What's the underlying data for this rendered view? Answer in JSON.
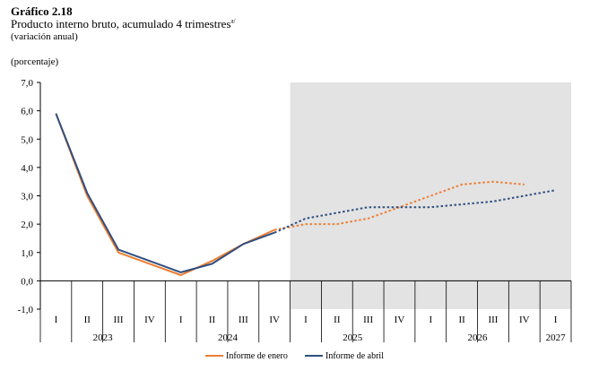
{
  "header": {
    "title": "Gráfico 2.18",
    "subtitle": "Producto interno bruto, acumulado 4 trimestres",
    "subtitle_mark": "a/",
    "note": "(variación anual)"
  },
  "chart_data": {
    "type": "line",
    "ylabel": "(porcentaje)",
    "ylim": [
      -1,
      7
    ],
    "yticks": [
      "7,0",
      "6,0",
      "5,0",
      "4,0",
      "3,0",
      "2,0",
      "1,0",
      "0,0",
      "-1,0"
    ],
    "categories": [
      "I",
      "II",
      "III",
      "IV",
      "I",
      "II",
      "III",
      "IV",
      "I",
      "II",
      "III",
      "IV",
      "I",
      "II",
      "III",
      "IV",
      "I"
    ],
    "years": [
      {
        "label": "2023",
        "quarters": 4
      },
      {
        "label": "2024",
        "quarters": 4
      },
      {
        "label": "2025",
        "quarters": 4
      },
      {
        "label": "2026",
        "quarters": 4
      },
      {
        "label": "2027",
        "quarters": 1
      }
    ],
    "forecast_start_index": 8,
    "shaded_region": "forecast",
    "grid": false,
    "legend_position": "bottom",
    "series": [
      {
        "name": "Informe de enero",
        "color": "#ED7D31",
        "values": [
          5.9,
          3.0,
          1.0,
          0.6,
          0.2,
          0.7,
          1.3,
          1.8,
          2.0,
          2.0,
          2.2,
          2.6,
          3.0,
          3.4,
          3.5,
          3.4,
          null
        ],
        "solid_until_index": 7
      },
      {
        "name": "Informe de abril",
        "color": "#2F4F80",
        "values": [
          5.9,
          3.1,
          1.1,
          0.7,
          0.3,
          0.6,
          1.3,
          1.7,
          2.2,
          2.4,
          2.6,
          2.6,
          2.6,
          2.7,
          2.8,
          3.0,
          3.2
        ],
        "solid_until_index": 7
      }
    ]
  }
}
